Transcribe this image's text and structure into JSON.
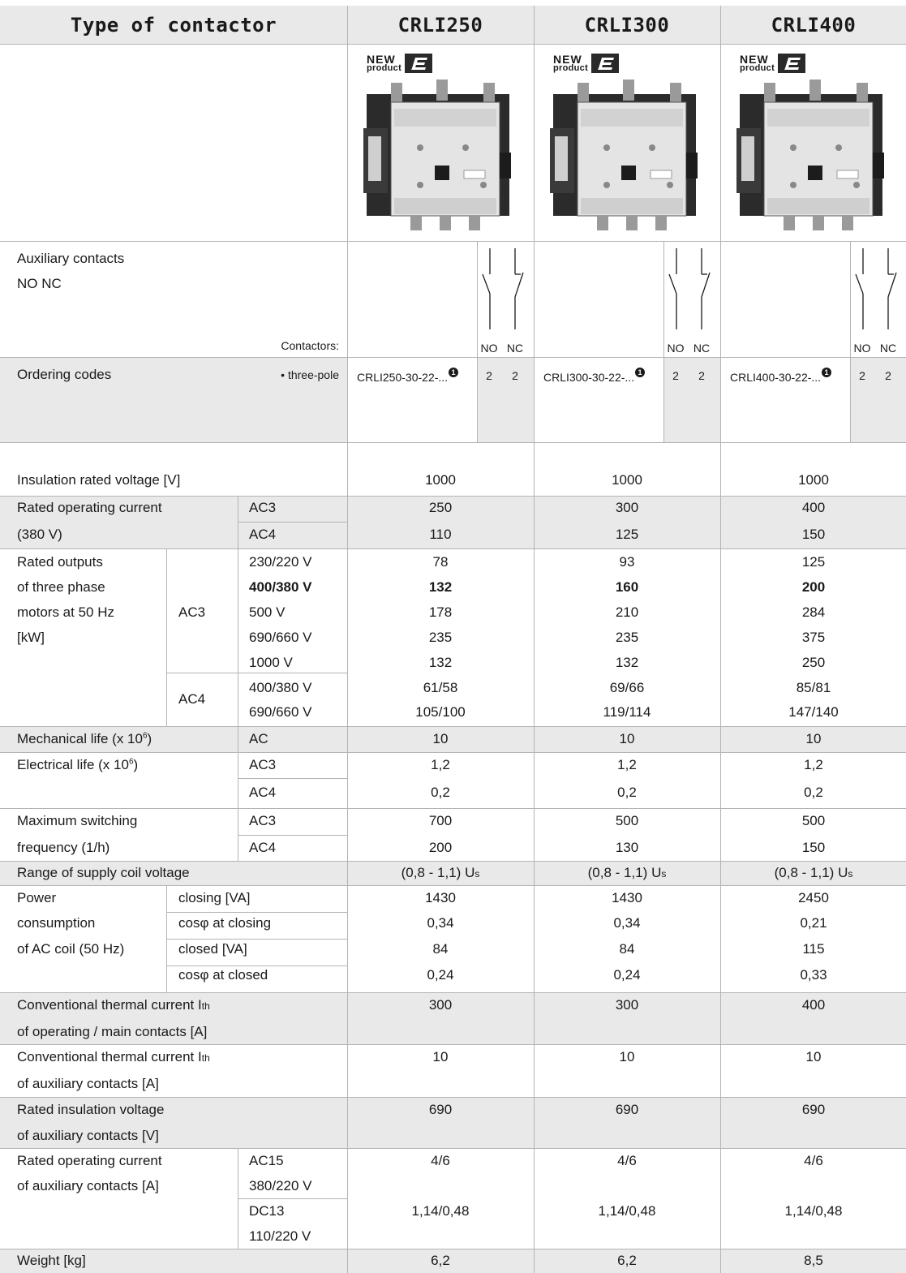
{
  "header": {
    "type_label": "Type of contactor",
    "models": [
      "CRLI250",
      "CRLI300",
      "CRLI400"
    ]
  },
  "badge": {
    "new": "NEW",
    "product": "product"
  },
  "aux": {
    "label_line1": "Auxiliary contacts",
    "label_line2": "NO  NC",
    "contactors": "Contactors:",
    "no": "NO",
    "nc": "NC"
  },
  "ordering": {
    "label": "Ordering codes",
    "sub": "• three-pole",
    "codes": [
      "CRLI250-30-22-...",
      "CRLI300-30-22-...",
      "CRLI400-30-22-..."
    ],
    "footnote_marker": "1",
    "no_count": "2",
    "nc_count": "2"
  },
  "rows": {
    "insulation": {
      "label": "Insulation rated voltage [V]",
      "values": [
        "1000",
        "1000",
        "1000"
      ]
    },
    "rated_current": {
      "label1": "Rated operating current",
      "label2": "(380 V)",
      "ac3": "AC3",
      "ac4": "AC4",
      "ac3_values": [
        "250",
        "300",
        "400"
      ],
      "ac4_values": [
        "110",
        "125",
        "150"
      ]
    },
    "outputs": {
      "label1": "Rated outputs",
      "label2": "of three phase",
      "label3": "motors at 50 Hz",
      "label4": "[kW]",
      "ac3": "AC3",
      "ac4": "AC4",
      "voltages": [
        "230/220 V",
        "400/380 V",
        "500 V",
        "690/660 V",
        "1000 V"
      ],
      "ac3_values": [
        [
          "78",
          "93",
          "125"
        ],
        [
          "132",
          "160",
          "200"
        ],
        [
          "178",
          "210",
          "284"
        ],
        [
          "235",
          "235",
          "375"
        ],
        [
          "132",
          "132",
          "250"
        ]
      ],
      "ac4_voltages": [
        "400/380 V",
        "690/660 V"
      ],
      "ac4_values": [
        [
          "61/58",
          "69/66",
          "85/81"
        ],
        [
          "105/100",
          "119/114",
          "147/140"
        ]
      ]
    },
    "mech_life": {
      "label": "Mechanical life (x 10",
      "sup": "6",
      "label_end": ")",
      "type": "AC",
      "values": [
        "10",
        "10",
        "10"
      ]
    },
    "elec_life": {
      "label": "Electrical life (x 10",
      "sup": "6",
      "label_end": ")",
      "ac3": "AC3",
      "ac4": "AC4",
      "ac3_values": [
        "1,2",
        "1,2",
        "1,2"
      ],
      "ac4_values": [
        "0,2",
        "0,2",
        "0,2"
      ]
    },
    "switching": {
      "label1": "Maximum switching",
      "label2": "frequency (1/h)",
      "ac3": "AC3",
      "ac4": "AC4",
      "ac3_values": [
        "700",
        "500",
        "500"
      ],
      "ac4_values": [
        "200",
        "130",
        "150"
      ]
    },
    "coil_range": {
      "label": "Range of supply coil voltage",
      "value": "(0,8 - 1,1) U",
      "sub": "s"
    },
    "power": {
      "label1": "Power",
      "label2": "consumption",
      "label3": "of AC coil (50 Hz)",
      "items": [
        {
          "label": "closing [VA]",
          "values": [
            "1430",
            "1430",
            "2450"
          ]
        },
        {
          "label": "cosφ at closing",
          "values": [
            "0,34",
            "0,34",
            "0,21"
          ]
        },
        {
          "label": "closed [VA]",
          "values": [
            "84",
            "84",
            "115"
          ]
        },
        {
          "label": "cosφ at closed",
          "values": [
            "0,24",
            "0,24",
            "0,33"
          ]
        }
      ]
    },
    "thermal_main": {
      "label1": "Conventional thermal current I",
      "sub": "th",
      "label2": "of operating / main contacts [A]",
      "values": [
        "300",
        "300",
        "400"
      ]
    },
    "thermal_aux": {
      "label1": "Conventional thermal current I",
      "sub": "th",
      "label2": "of auxiliary contacts [A]",
      "values": [
        "10",
        "10",
        "10"
      ]
    },
    "aux_insulation": {
      "label1": "Rated insulation voltage",
      "label2": "of auxiliary contacts [V]",
      "values": [
        "690",
        "690",
        "690"
      ]
    },
    "aux_current": {
      "label1": "Rated operating current",
      "label2": "of auxiliary contacts [A]",
      "ac15_1": "AC15",
      "ac15_2": "380/220 V",
      "ac15_values": [
        "4/6",
        "4/6",
        "4/6"
      ],
      "dc13_1": "DC13",
      "dc13_2": "110/220 V",
      "dc13_values": [
        "1,14/0,48",
        "1,14/0,48",
        "1,14/0,48"
      ]
    },
    "weight": {
      "label": "Weight  [kg]",
      "values": [
        "6,2",
        "6,2",
        "8,5"
      ]
    }
  }
}
